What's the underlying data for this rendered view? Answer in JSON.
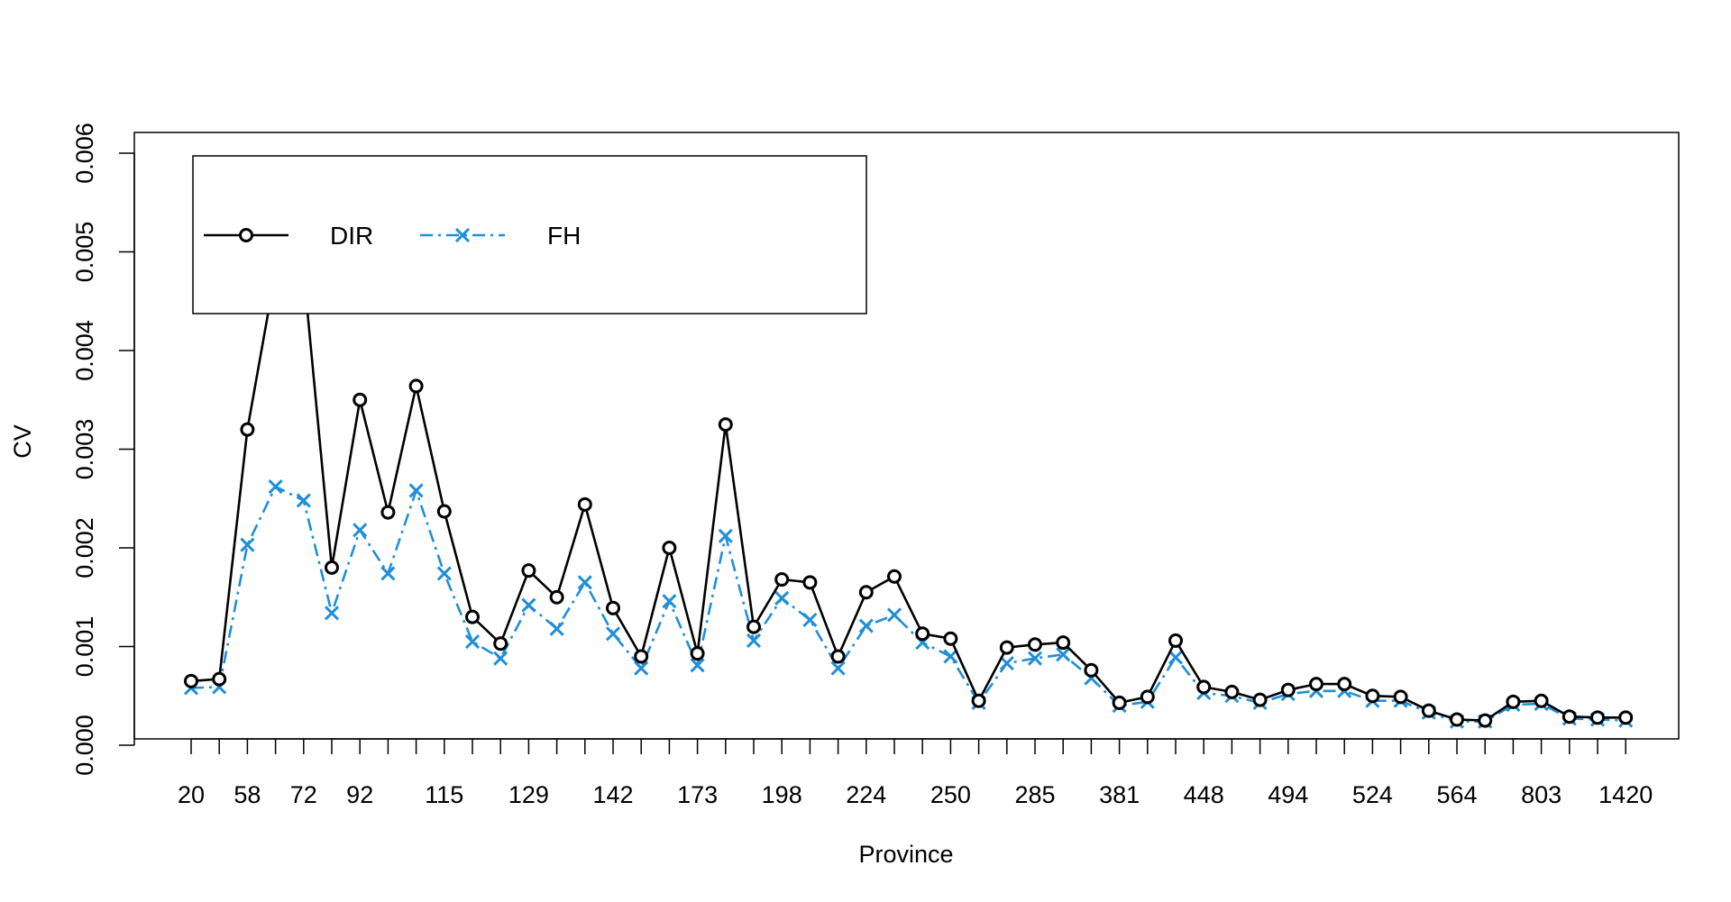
{
  "chart_data": {
    "type": "line",
    "xlabel": "Province",
    "ylabel": "CV",
    "ylim": [
      0,
      0.006
    ],
    "y_ticks": [
      "0.000",
      "0.001",
      "0.002",
      "0.003",
      "0.004",
      "0.005",
      "0.006"
    ],
    "y_tick_values": [
      0,
      0.001,
      0.002,
      0.003,
      0.004,
      0.005,
      0.006
    ],
    "x_tick_labels": [
      "20",
      "58",
      "72",
      "92",
      "115",
      "129",
      "142",
      "173",
      "198",
      "224",
      "250",
      "285",
      "381",
      "448",
      "494",
      "524",
      "564",
      "803",
      "1420"
    ],
    "x_tick_index": [
      1,
      3,
      5,
      7,
      10,
      13,
      16,
      19,
      22,
      25,
      28,
      31,
      34,
      37,
      40,
      43,
      46,
      49,
      52
    ],
    "grid": false,
    "legend_position": "top-left",
    "series": [
      {
        "name": "DIR",
        "color": "#000000",
        "marker": "circle",
        "line": "solid",
        "values": [
          0.00065,
          0.00067,
          0.0032,
          0.0048,
          0.0048,
          0.0018,
          0.0035,
          0.00236,
          0.00364,
          0.00237,
          0.0013,
          0.00103,
          0.00177,
          0.0015,
          0.00244,
          0.00139,
          0.0009,
          0.002,
          0.00093,
          0.00325,
          0.0012,
          0.00168,
          0.00165,
          0.0009,
          0.00155,
          0.00171,
          0.00113,
          0.00108,
          0.00045,
          0.00099,
          0.00102,
          0.00104,
          0.00076,
          0.00043,
          0.00049,
          0.00106,
          0.00059,
          0.00054,
          0.00046,
          0.00056,
          0.00062,
          0.00062,
          0.0005,
          0.00049,
          0.00035,
          0.00026,
          0.00025,
          0.00044,
          0.00045,
          0.00029,
          0.00028,
          0.00028
        ]
      },
      {
        "name": "FH",
        "color": "#1f8fd8",
        "marker": "cross",
        "line": "dashdot",
        "values": [
          0.00058,
          0.00059,
          0.00203,
          0.00262,
          0.00248,
          0.00134,
          0.00218,
          0.00174,
          0.00258,
          0.00174,
          0.00105,
          0.00088,
          0.00142,
          0.00118,
          0.00165,
          0.00113,
          0.00078,
          0.00146,
          0.00081,
          0.00212,
          0.00106,
          0.00149,
          0.00127,
          0.00078,
          0.00121,
          0.00132,
          0.00104,
          0.0009,
          0.00043,
          0.00083,
          0.00088,
          0.00092,
          0.00068,
          0.0004,
          0.00044,
          0.00089,
          0.00053,
          0.0005,
          0.00043,
          0.00052,
          0.00055,
          0.00055,
          0.00045,
          0.00045,
          0.00033,
          0.00024,
          0.00024,
          0.00041,
          0.00042,
          0.00027,
          0.00026,
          0.00025
        ]
      }
    ]
  }
}
